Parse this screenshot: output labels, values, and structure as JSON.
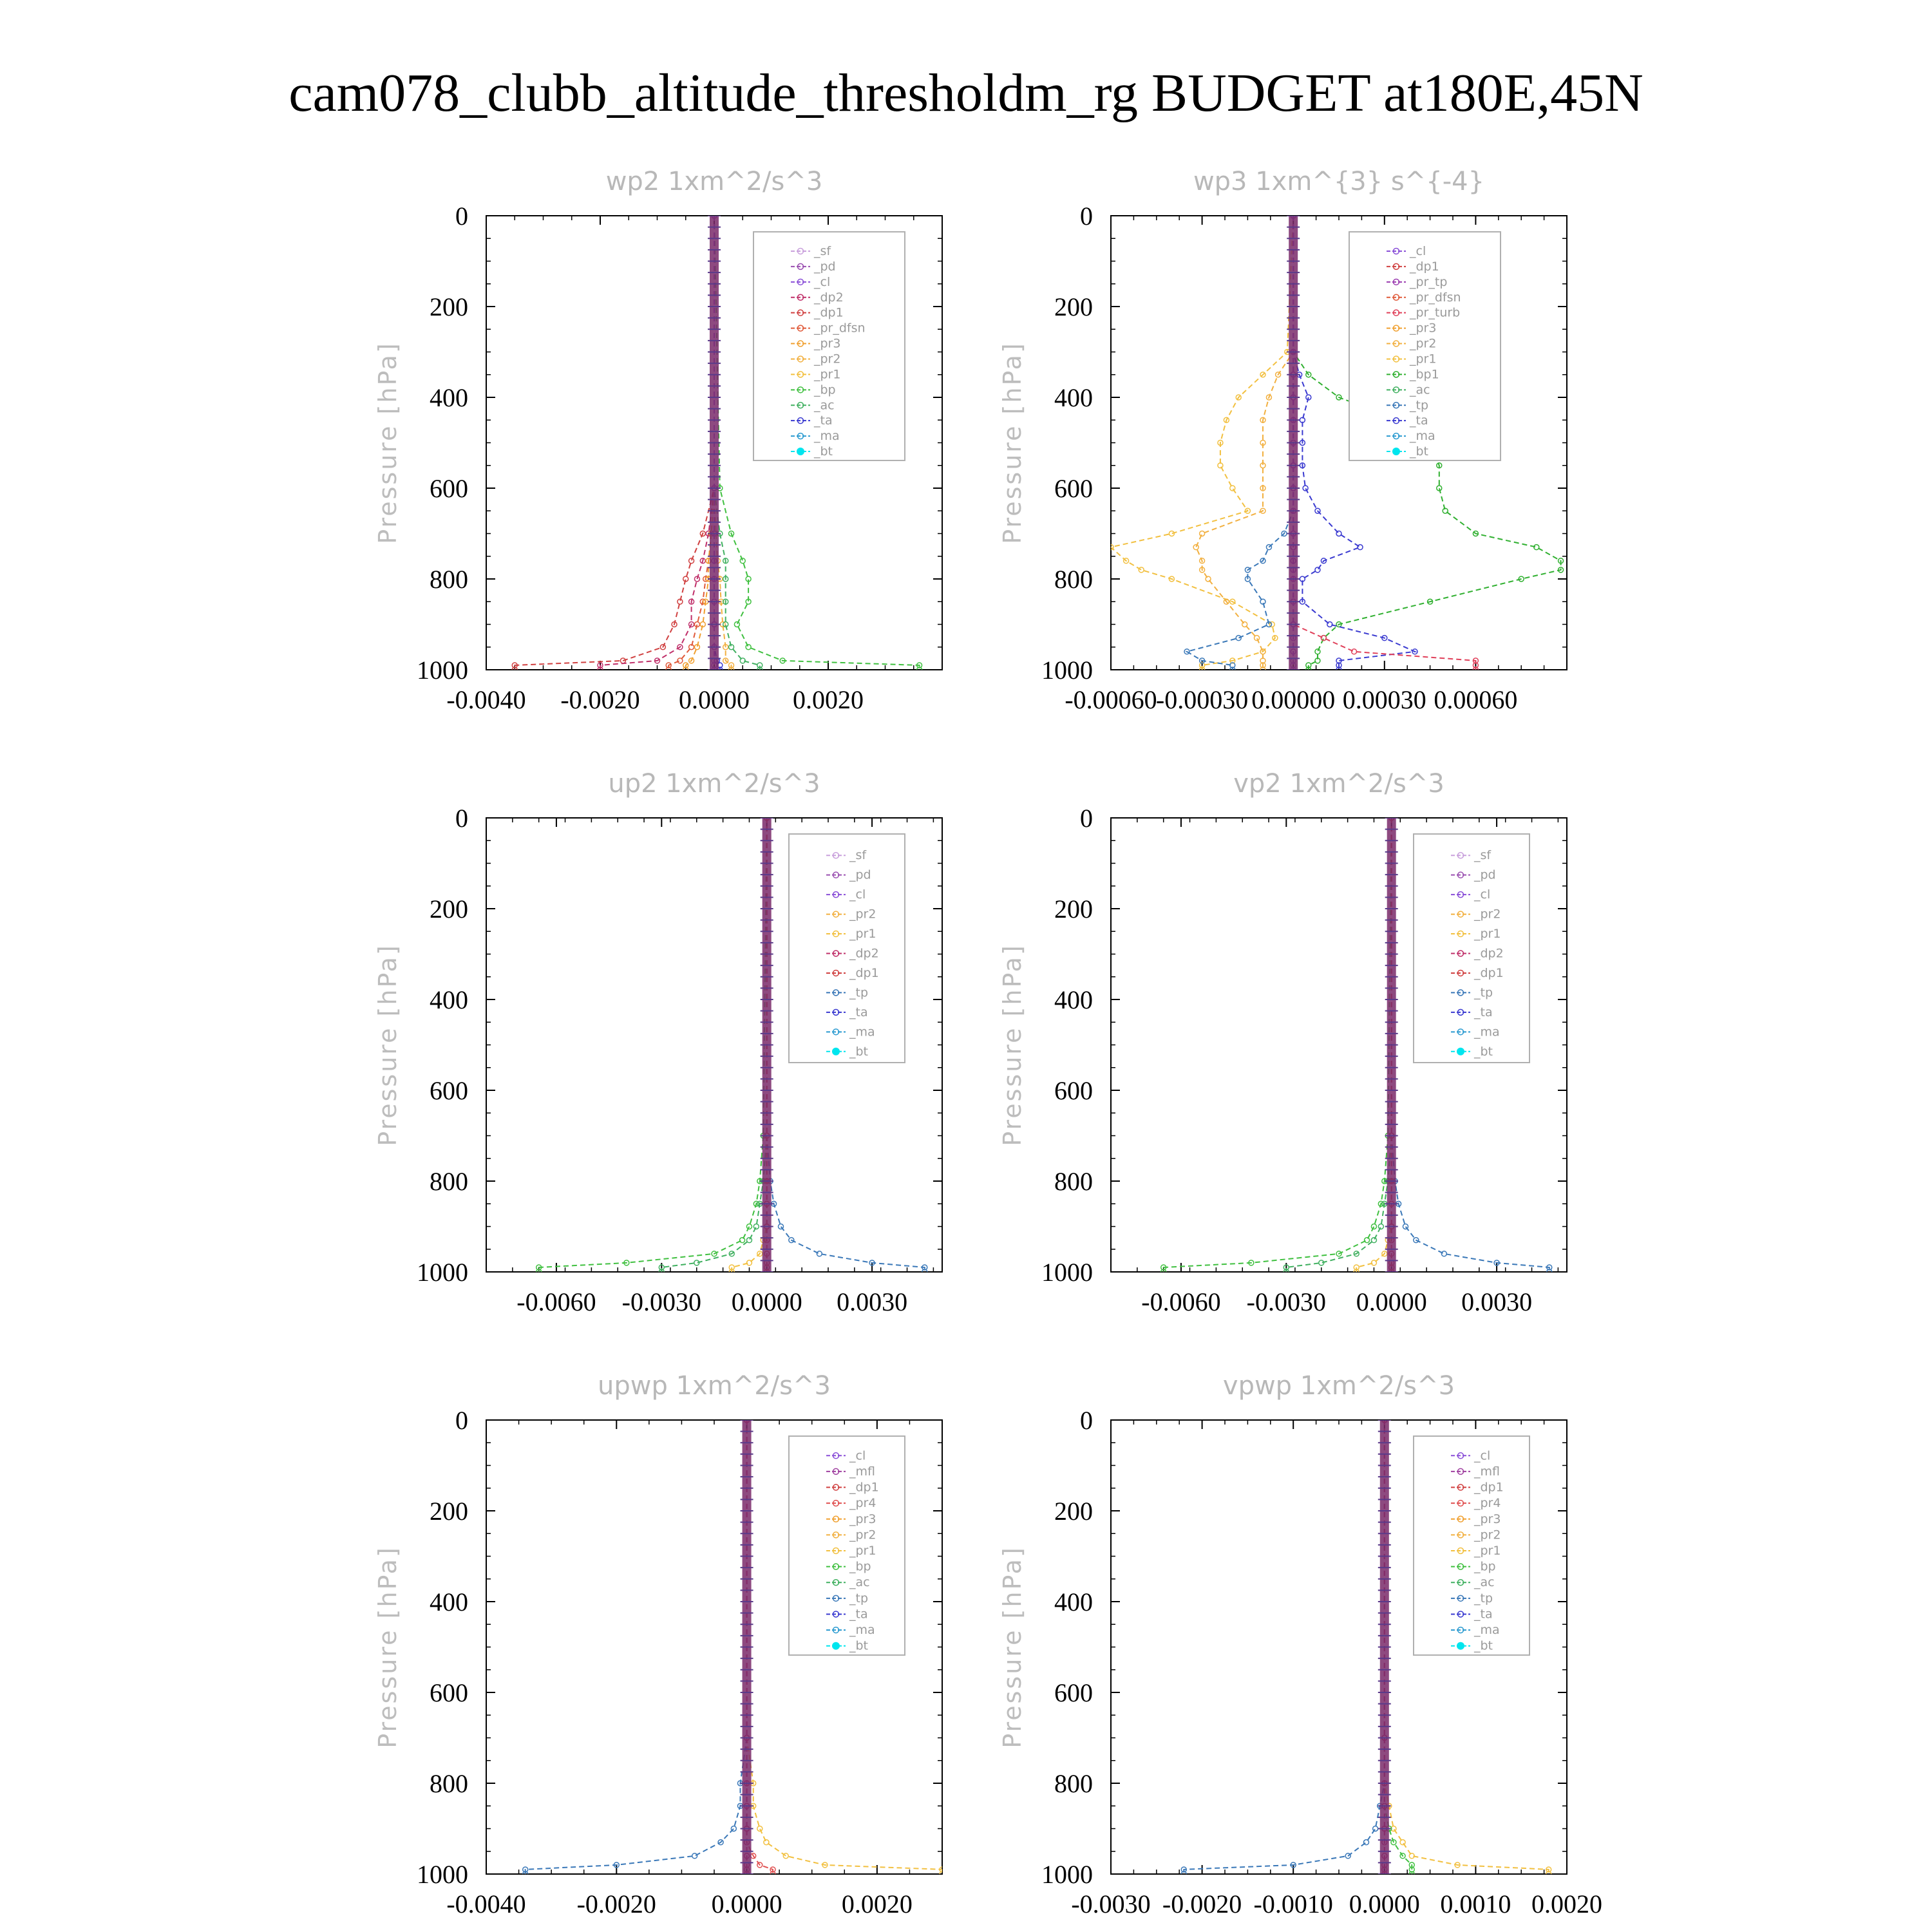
{
  "title": "cam078_clubb_altitude_thresholdm_rg  BUDGET at180E,45N",
  "colors": {
    "sf": "#c9a0dc",
    "pd": "#9a4fb0",
    "cl": "#8a4fd8",
    "dp2": "#c0306a",
    "dp1": "#d04040",
    "pr_dfsn": "#e05a3a",
    "pr_tp": "#9b3cb0",
    "pr_turb": "#e0405a",
    "pr1": "#f2c040",
    "pr2": "#f2b040",
    "pr3": "#f0a030",
    "pr4": "#e05050",
    "mfl": "#a040a0",
    "bp": "#40c040",
    "bp1": "#30b030",
    "ac": "#40b060",
    "tp": "#3a78b8",
    "ta": "#3a3ad0",
    "ma": "#2a9ad0",
    "bt": "#00e5ee"
  },
  "chart_data": [
    {
      "type": "line",
      "title": "wp2   1xm^2/s^3",
      "ylabel": "Pressure [hPa]",
      "xlim": [
        -0.004,
        0.004
      ],
      "ylim": [
        0,
        1000
      ],
      "xticks": [
        -0.004,
        -0.002,
        0,
        0.002
      ],
      "xtick_labels": [
        "-0.0040",
        "-0.0020",
        "0.0000",
        "0.0020"
      ],
      "yticks": [
        0,
        200,
        400,
        600,
        800,
        1000
      ],
      "ytick_labels": [
        "0",
        "200",
        "400",
        "600",
        "800",
        "1000"
      ],
      "legend": {
        "position": "top-right",
        "entries": [
          "_sf",
          "_pd",
          "_cl",
          "_dp2",
          "_dp1",
          "_pr_dfsn",
          "_pr3",
          "_pr2",
          "_pr1",
          "_bp",
          "_ac",
          "_ta",
          "_ma",
          "_bt"
        ]
      },
      "y": [
        0,
        600,
        700,
        760,
        800,
        850,
        900,
        950,
        980,
        990,
        1000
      ],
      "series": [
        {
          "key": "dp1",
          "color": "dp1",
          "x": [
            0,
            0,
            -0.0002,
            -0.0004,
            -0.0005,
            -0.0006,
            -0.0007,
            -0.0009,
            -0.0016,
            -0.0035,
            -0.0035
          ]
        },
        {
          "key": "dp2",
          "color": "dp2",
          "x": [
            0,
            0,
            -0.0001,
            -0.0002,
            -0.0003,
            -0.0004,
            -0.0004,
            -0.0006,
            -0.001,
            -0.002,
            -0.002
          ]
        },
        {
          "key": "pr_dfsn",
          "color": "pr_dfsn",
          "x": [
            0,
            0,
            -5e-05,
            -0.0001,
            -0.00015,
            -0.0002,
            -0.0003,
            -0.0004,
            -0.0006,
            -0.0008,
            -0.0008
          ]
        },
        {
          "key": "pr3",
          "color": "pr3",
          "x": [
            0,
            0,
            -5e-05,
            -0.0001,
            -0.0001,
            -0.00015,
            -0.0002,
            -0.0003,
            -0.0004,
            -0.0005,
            -0.0005
          ]
        },
        {
          "key": "pr2",
          "color": "pr2",
          "x": [
            0,
            0,
            3e-05,
            6e-05,
            0.0001,
            0.00012,
            0.00015,
            0.0002,
            0.0002,
            0.0003,
            0.0003
          ]
        },
        {
          "key": "bp",
          "color": "bp",
          "x": [
            0,
            0.0001,
            0.0003,
            0.0005,
            0.0006,
            0.0006,
            0.0004,
            0.0006,
            0.0012,
            0.0036,
            0.0036
          ]
        },
        {
          "key": "ac",
          "color": "ac",
          "x": [
            0,
            0,
            0.0001,
            0.0002,
            0.0002,
            0.0002,
            0.0002,
            0.0003,
            0.0005,
            0.0008,
            0.0008
          ]
        },
        {
          "key": "ta",
          "color": "ta",
          "x": [
            0,
            0,
            0,
            0,
            0,
            0,
            0,
            0,
            5e-05,
            0.0001,
            0.0001
          ]
        },
        {
          "key": "cl",
          "color": "cl",
          "x": [
            0,
            0,
            0,
            0,
            0,
            0,
            0,
            0,
            0,
            0,
            0
          ]
        }
      ]
    },
    {
      "type": "line",
      "title": "wp3   1xm^{3} s^{-4}",
      "ylabel": "Pressure [hPa]",
      "xlim": [
        -0.0006,
        0.0009
      ],
      "ylim": [
        0,
        1000
      ],
      "xticks": [
        -0.0006,
        -0.0003,
        0,
        0.0003,
        0.0006
      ],
      "xtick_labels": [
        "-0.00060",
        "-0.00030",
        "0.00000",
        "0.00030",
        "0.00060"
      ],
      "yticks": [
        0,
        200,
        400,
        600,
        800,
        1000
      ],
      "ytick_labels": [
        "0",
        "200",
        "400",
        "600",
        "800",
        "1000"
      ],
      "legend": {
        "position": "top-right",
        "entries": [
          "_cl",
          "_dp1",
          "_pr_tp",
          "_pr_dfsn",
          "_pr_turb",
          "_pr3",
          "_pr2",
          "_pr1",
          "_bp1",
          "_ac",
          "_tp",
          "_ta",
          "_ma",
          "_bt"
        ]
      },
      "y": [
        0,
        300,
        350,
        400,
        450,
        500,
        550,
        600,
        650,
        700,
        730,
        760,
        780,
        800,
        850,
        900,
        930,
        960,
        980,
        990,
        1000
      ],
      "series": [
        {
          "key": "bp1",
          "color": "bp1",
          "x": [
            0,
            0,
            5e-05,
            0.00015,
            0.00035,
            0.00045,
            0.00048,
            0.00048,
            0.0005,
            0.0006,
            0.0008,
            0.00088,
            0.00088,
            0.00075,
            0.00045,
            0.00015,
            0.0001,
            8e-05,
            8e-05,
            5e-05,
            5e-05
          ]
        },
        {
          "key": "pr1",
          "color": "pr1",
          "x": [
            0,
            -2e-05,
            -0.0001,
            -0.00018,
            -0.00022,
            -0.00024,
            -0.00024,
            -0.0002,
            -0.00015,
            -0.0004,
            -0.0006,
            -0.00055,
            -0.0005,
            -0.0004,
            -0.0002,
            -7e-05,
            -6e-05,
            -0.0001,
            -0.0002,
            -0.0003,
            -0.0003
          ]
        },
        {
          "key": "pr2",
          "color": "pr2",
          "x": [
            0,
            0,
            -5e-05,
            -8e-05,
            -0.0001,
            -0.0001,
            -0.0001,
            -0.0001,
            -0.0001,
            -0.0003,
            -0.00032,
            -0.0003,
            -0.0003,
            -0.00028,
            -0.00022,
            -0.00016,
            -0.00012,
            -0.0001,
            -0.0001,
            -0.0001,
            -0.0001
          ]
        },
        {
          "key": "tp",
          "color": "tp",
          "x": [
            0,
            0,
            0,
            0,
            0,
            0,
            0,
            0,
            0,
            -3e-05,
            -8e-05,
            -0.0001,
            -0.00015,
            -0.00015,
            -0.0001,
            -8e-05,
            -0.00018,
            -0.00035,
            -0.0003,
            -0.0002,
            -0.0002
          ]
        },
        {
          "key": "ta",
          "color": "ta",
          "x": [
            0,
            0,
            2e-05,
            5e-05,
            3e-05,
            3e-05,
            3e-05,
            4e-05,
            8e-05,
            0.00015,
            0.00022,
            0.0001,
            8e-05,
            3e-05,
            3e-05,
            0.00012,
            0.0003,
            0.0004,
            0.00015,
            0.00015,
            0.00015
          ]
        },
        {
          "key": "dp1",
          "color": "pr_turb",
          "x": [
            0,
            0,
            0,
            0,
            0,
            0,
            0,
            0,
            0,
            0,
            0,
            0,
            0,
            0,
            0,
            0,
            0.0001,
            0.0002,
            0.0006,
            0.0006,
            0.0006
          ]
        },
        {
          "key": "cl",
          "color": "cl",
          "x": [
            0,
            0,
            0,
            0,
            0,
            0,
            0,
            0,
            0,
            0,
            0,
            0,
            0,
            0,
            0,
            0,
            0,
            0,
            0,
            0,
            0
          ]
        }
      ]
    },
    {
      "type": "line",
      "title": "up2   1xm^2/s^3",
      "ylabel": "Pressure [hPa]",
      "xlim": [
        -0.008,
        0.005
      ],
      "ylim": [
        0,
        1000
      ],
      "xticks": [
        -0.006,
        -0.003,
        0,
        0.003
      ],
      "xtick_labels": [
        "-0.0060",
        "-0.0030",
        "0.0000",
        "0.0030"
      ],
      "yticks": [
        0,
        200,
        400,
        600,
        800,
        1000
      ],
      "ytick_labels": [
        "0",
        "200",
        "400",
        "600",
        "800",
        "1000"
      ],
      "legend": {
        "position": "top-right",
        "entries": [
          "_sf",
          "_pd",
          "_cl",
          "_pr2",
          "_pr1",
          "_dp2",
          "_dp1",
          "_tp",
          "_ta",
          "_ma",
          "_bt"
        ]
      },
      "y": [
        0,
        700,
        800,
        850,
        900,
        930,
        960,
        980,
        990,
        1000
      ],
      "series": [
        {
          "key": "dp1",
          "color": "bp",
          "x": [
            0,
            -0.0001,
            -0.0002,
            -0.0003,
            -0.0005,
            -0.0007,
            -0.0015,
            -0.004,
            -0.0065,
            -0.0065
          ]
        },
        {
          "key": "dp2",
          "color": "ac",
          "x": [
            0,
            0,
            -0.0001,
            -0.0002,
            -0.0003,
            -0.0005,
            -0.001,
            -0.002,
            -0.003,
            -0.003
          ]
        },
        {
          "key": "tp",
          "color": "tp",
          "x": [
            0,
            0,
            0.0001,
            0.0002,
            0.0004,
            0.0007,
            0.0015,
            0.003,
            0.0045,
            0.0045
          ]
        },
        {
          "key": "pr1",
          "color": "pr1",
          "x": [
            0,
            0,
            0,
            0,
            0,
            -0.0001,
            -0.0002,
            -0.0005,
            -0.001,
            -0.001
          ]
        },
        {
          "key": "cl",
          "color": "dp1",
          "x": [
            0,
            0,
            0,
            0,
            0,
            0,
            0,
            0,
            0,
            0
          ]
        }
      ]
    },
    {
      "type": "line",
      "title": "vp2   1xm^2/s^3",
      "ylabel": "Pressure [hPa]",
      "xlim": [
        -0.008,
        0.005
      ],
      "ylim": [
        0,
        1000
      ],
      "xticks": [
        -0.006,
        -0.003,
        0,
        0.003
      ],
      "xtick_labels": [
        "-0.0060",
        "-0.0030",
        "0.0000",
        "0.0030"
      ],
      "yticks": [
        0,
        200,
        400,
        600,
        800,
        1000
      ],
      "ytick_labels": [
        "0",
        "200",
        "400",
        "600",
        "800",
        "1000"
      ],
      "legend": {
        "position": "top-right",
        "entries": [
          "_sf",
          "_pd",
          "_cl",
          "_pr2",
          "_pr1",
          "_dp2",
          "_dp1",
          "_tp",
          "_ta",
          "_ma",
          "_bt"
        ]
      },
      "y": [
        0,
        700,
        800,
        850,
        900,
        930,
        960,
        980,
        990,
        1000
      ],
      "series": [
        {
          "key": "dp1",
          "color": "bp",
          "x": [
            0,
            -0.0001,
            -0.0002,
            -0.0003,
            -0.0005,
            -0.0007,
            -0.0015,
            -0.004,
            -0.0065,
            -0.0065
          ]
        },
        {
          "key": "dp2",
          "color": "ac",
          "x": [
            0,
            0,
            -0.0001,
            -0.0002,
            -0.0003,
            -0.0005,
            -0.001,
            -0.002,
            -0.003,
            -0.003
          ]
        },
        {
          "key": "tp",
          "color": "tp",
          "x": [
            0,
            0,
            0.0001,
            0.0002,
            0.0004,
            0.0007,
            0.0015,
            0.003,
            0.0045,
            0.0045
          ]
        },
        {
          "key": "pr1",
          "color": "pr1",
          "x": [
            0,
            0,
            0,
            0,
            0,
            -0.0001,
            -0.0002,
            -0.0005,
            -0.001,
            -0.001
          ]
        },
        {
          "key": "cl",
          "color": "dp1",
          "x": [
            0,
            0,
            0,
            0,
            0,
            0,
            0,
            0,
            0,
            0
          ]
        }
      ]
    },
    {
      "type": "line",
      "title": "upwp   1xm^2/s^3",
      "ylabel": "Pressure [hPa]",
      "xlim": [
        -0.004,
        0.003
      ],
      "ylim": [
        0,
        1000
      ],
      "xticks": [
        -0.004,
        -0.002,
        0,
        0.002
      ],
      "xtick_labels": [
        "-0.0040",
        "-0.0020",
        "0.0000",
        "0.0020"
      ],
      "yticks": [
        0,
        200,
        400,
        600,
        800,
        1000
      ],
      "ytick_labels": [
        "0",
        "200",
        "400",
        "600",
        "800",
        "1000"
      ],
      "legend": {
        "position": "top-right",
        "entries": [
          "_cl",
          "_mfl",
          "_dp1",
          "_pr4",
          "_pr3",
          "_pr2",
          "_pr1",
          "_bp",
          "_ac",
          "_tp",
          "_ta",
          "_ma",
          "_bt"
        ]
      },
      "y": [
        0,
        700,
        800,
        850,
        900,
        930,
        960,
        980,
        990,
        1000
      ],
      "series": [
        {
          "key": "tp",
          "color": "tp",
          "x": [
            0,
            0,
            -0.0001,
            -0.0001,
            -0.0002,
            -0.0004,
            -0.0008,
            -0.002,
            -0.0034,
            -0.0034
          ]
        },
        {
          "key": "pr2",
          "color": "pr1",
          "x": [
            0,
            0,
            0.0001,
            0.0001,
            0.0002,
            0.0003,
            0.0006,
            0.0012,
            0.003,
            0.003
          ]
        },
        {
          "key": "pr4",
          "color": "pr4",
          "x": [
            0,
            0,
            0,
            0,
            0,
            0,
            0.0001,
            0.0002,
            0.0004,
            0.0004
          ]
        },
        {
          "key": "cl",
          "color": "dp2",
          "x": [
            0,
            0,
            0,
            0,
            0,
            0,
            0,
            0,
            0,
            0
          ]
        }
      ]
    },
    {
      "type": "line",
      "title": "vpwp   1xm^2/s^3",
      "ylabel": "Pressure [hPa]",
      "xlim": [
        -0.003,
        0.002
      ],
      "ylim": [
        0,
        1000
      ],
      "xticks": [
        -0.003,
        -0.002,
        -0.001,
        0,
        0.001,
        0.002
      ],
      "xtick_labels": [
        "-0.0030",
        "-0.0020",
        "-0.0010",
        "0.0000",
        "0.0010",
        "0.0020"
      ],
      "yticks": [
        0,
        200,
        400,
        600,
        800,
        1000
      ],
      "ytick_labels": [
        "0",
        "200",
        "400",
        "600",
        "800",
        "1000"
      ],
      "legend": {
        "position": "top-right",
        "entries": [
          "_cl",
          "_mfl",
          "_dp1",
          "_pr4",
          "_pr3",
          "_pr2",
          "_pr1",
          "_bp",
          "_ac",
          "_tp",
          "_ta",
          "_ma",
          "_bt"
        ]
      },
      "y": [
        0,
        700,
        800,
        850,
        900,
        930,
        960,
        980,
        990,
        1000
      ],
      "series": [
        {
          "key": "tp",
          "color": "tp",
          "x": [
            0,
            0,
            0,
            -5e-05,
            -0.0001,
            -0.0002,
            -0.0004,
            -0.001,
            -0.0022,
            -0.0022
          ]
        },
        {
          "key": "pr2",
          "color": "pr1",
          "x": [
            0,
            0,
            0,
            5e-05,
            0.0001,
            0.0002,
            0.0003,
            0.0008,
            0.0018,
            0.0018
          ]
        },
        {
          "key": "bp",
          "color": "bp",
          "x": [
            0,
            0,
            0,
            0,
            5e-05,
            0.0001,
            0.0002,
            0.0003,
            0.0003,
            0.0003
          ]
        },
        {
          "key": "cl",
          "color": "dp2",
          "x": [
            0,
            0,
            0,
            0,
            0,
            0,
            0,
            0,
            0,
            0
          ]
        }
      ]
    }
  ]
}
